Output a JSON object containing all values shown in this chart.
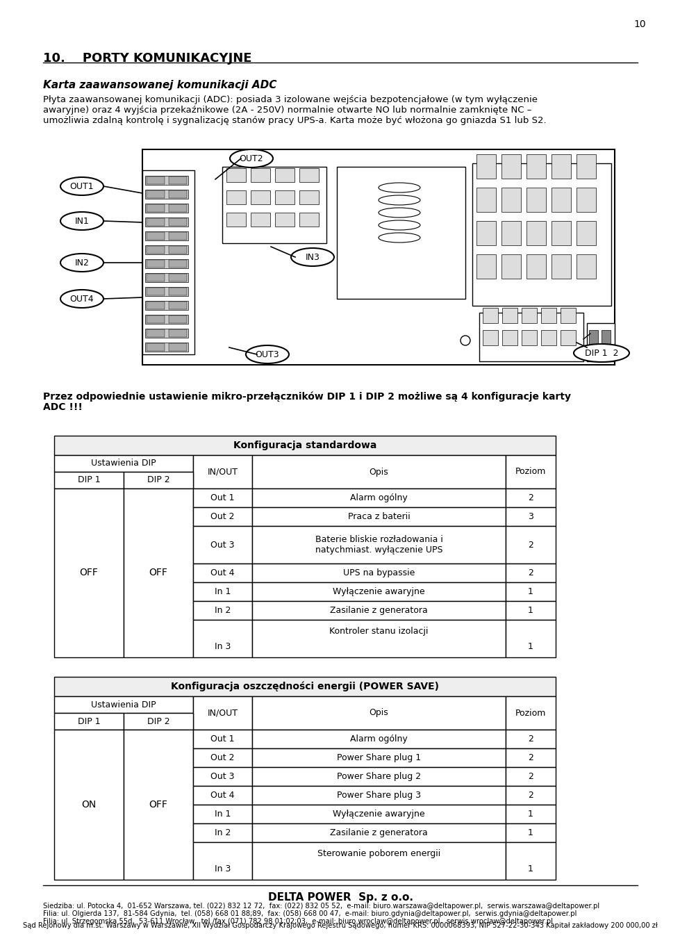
{
  "page_number": "10",
  "section_title": "10.    PORTY KOMUNIKACYJNE",
  "subsection_title": "Karta zaawansowanej komunikacji ADC",
  "body_lines": [
    "Płyta zaawansowanej komunikacji (ADC): posiada 3 izolowane wejścia bezpotencjałowe (w tym wyłączenie",
    "awaryjne) oraz 4 wyjścia przekaźnikowe (2A - 250V) normalnie otwarte NO lub normalnie zamknięte NC –",
    "umożliwia zdalną kontrolę i sygnalizację stanów pracy UPS-a. Karta może być włożona go gniazda S1 lub S2."
  ],
  "dip_line1": "Przez odpowiednie ustawienie mikro-przełączników DIP 1 i DIP 2 możliwe są 4 konfiguracje karty",
  "dip_line2": "ADC !!!",
  "table1_title": "Konfiguracja standardowa",
  "table1_rows": [
    [
      "",
      "",
      "Out 1",
      "Alarm ogólny",
      "2"
    ],
    [
      "",
      "",
      "Out 2",
      "Praca z baterii",
      "3"
    ],
    [
      "",
      "",
      "Out 3",
      "Baterie bliskie rozładowania i\nnatychmiast. wyłączenie UPS",
      "2"
    ],
    [
      "OFF",
      "OFF",
      "Out 4",
      "UPS na bypassie",
      "2"
    ],
    [
      "",
      "",
      "In 1",
      "Wyłączenie awaryjne",
      "1"
    ],
    [
      "",
      "",
      "In 2",
      "Zasilanie z generatora",
      "1"
    ],
    [
      "",
      "",
      "In 3",
      "Kontroler stanu izolacji",
      "1"
    ]
  ],
  "table2_title": "Konfiguracja oszczędności energii (POWER SAVE)",
  "table2_rows": [
    [
      "",
      "",
      "Out 1",
      "Alarm ogólny",
      "2"
    ],
    [
      "",
      "",
      "Out 2",
      "Power Share plug 1",
      "2"
    ],
    [
      "",
      "",
      "Out 3",
      "Power Share plug 2",
      "2"
    ],
    [
      "ON",
      "OFF",
      "Out 4",
      "Power Share plug 3",
      "2"
    ],
    [
      "",
      "",
      "In 1",
      "Wyłączenie awaryjne",
      "1"
    ],
    [
      "",
      "",
      "In 2",
      "Zasilanie z generatora",
      "1"
    ],
    [
      "",
      "",
      "In 3",
      "Sterowanie poborem energii",
      "1"
    ]
  ],
  "footer_company": "DELTA POWER  Sp. z o.o.",
  "footer_lines": [
    "Siedziba: ul. Potocka 4,  01-652 Warszawa, tel. (022) 832 12 72,  fax: (022) 832 05 52,  e-mail: biuro.warszawa@deltapower.pl,  serwis.warszawa@deltapower.pl",
    "Filia: ul. Olgierda 137,  81-584 Gdynia,  tel. (058) 668 01 88;89,  fax: (058) 668 00 47,  e-mail: biuro.gdynia@deltapower.pl,  serwis.gdynia@deltapower.pl",
    "Filia: ul. Strzegomska 55d,  53-611 Wrocław,  tel./fax (071) 782 98 01;02;03,  e-mail: biuro.wroclaw@deltapower.pl,  serwis.wroclaw@deltapower.pl"
  ],
  "footer_court": "Sąd Rejonowy dla m.st. Warszawy w Warszawie, XII Wydział Gospodarczy Krajowego Rejestru Sądowego, numer KRS: 0000068393, NIP 527-22-30-343 Kapitał zakładowy 200 000,00 zł"
}
